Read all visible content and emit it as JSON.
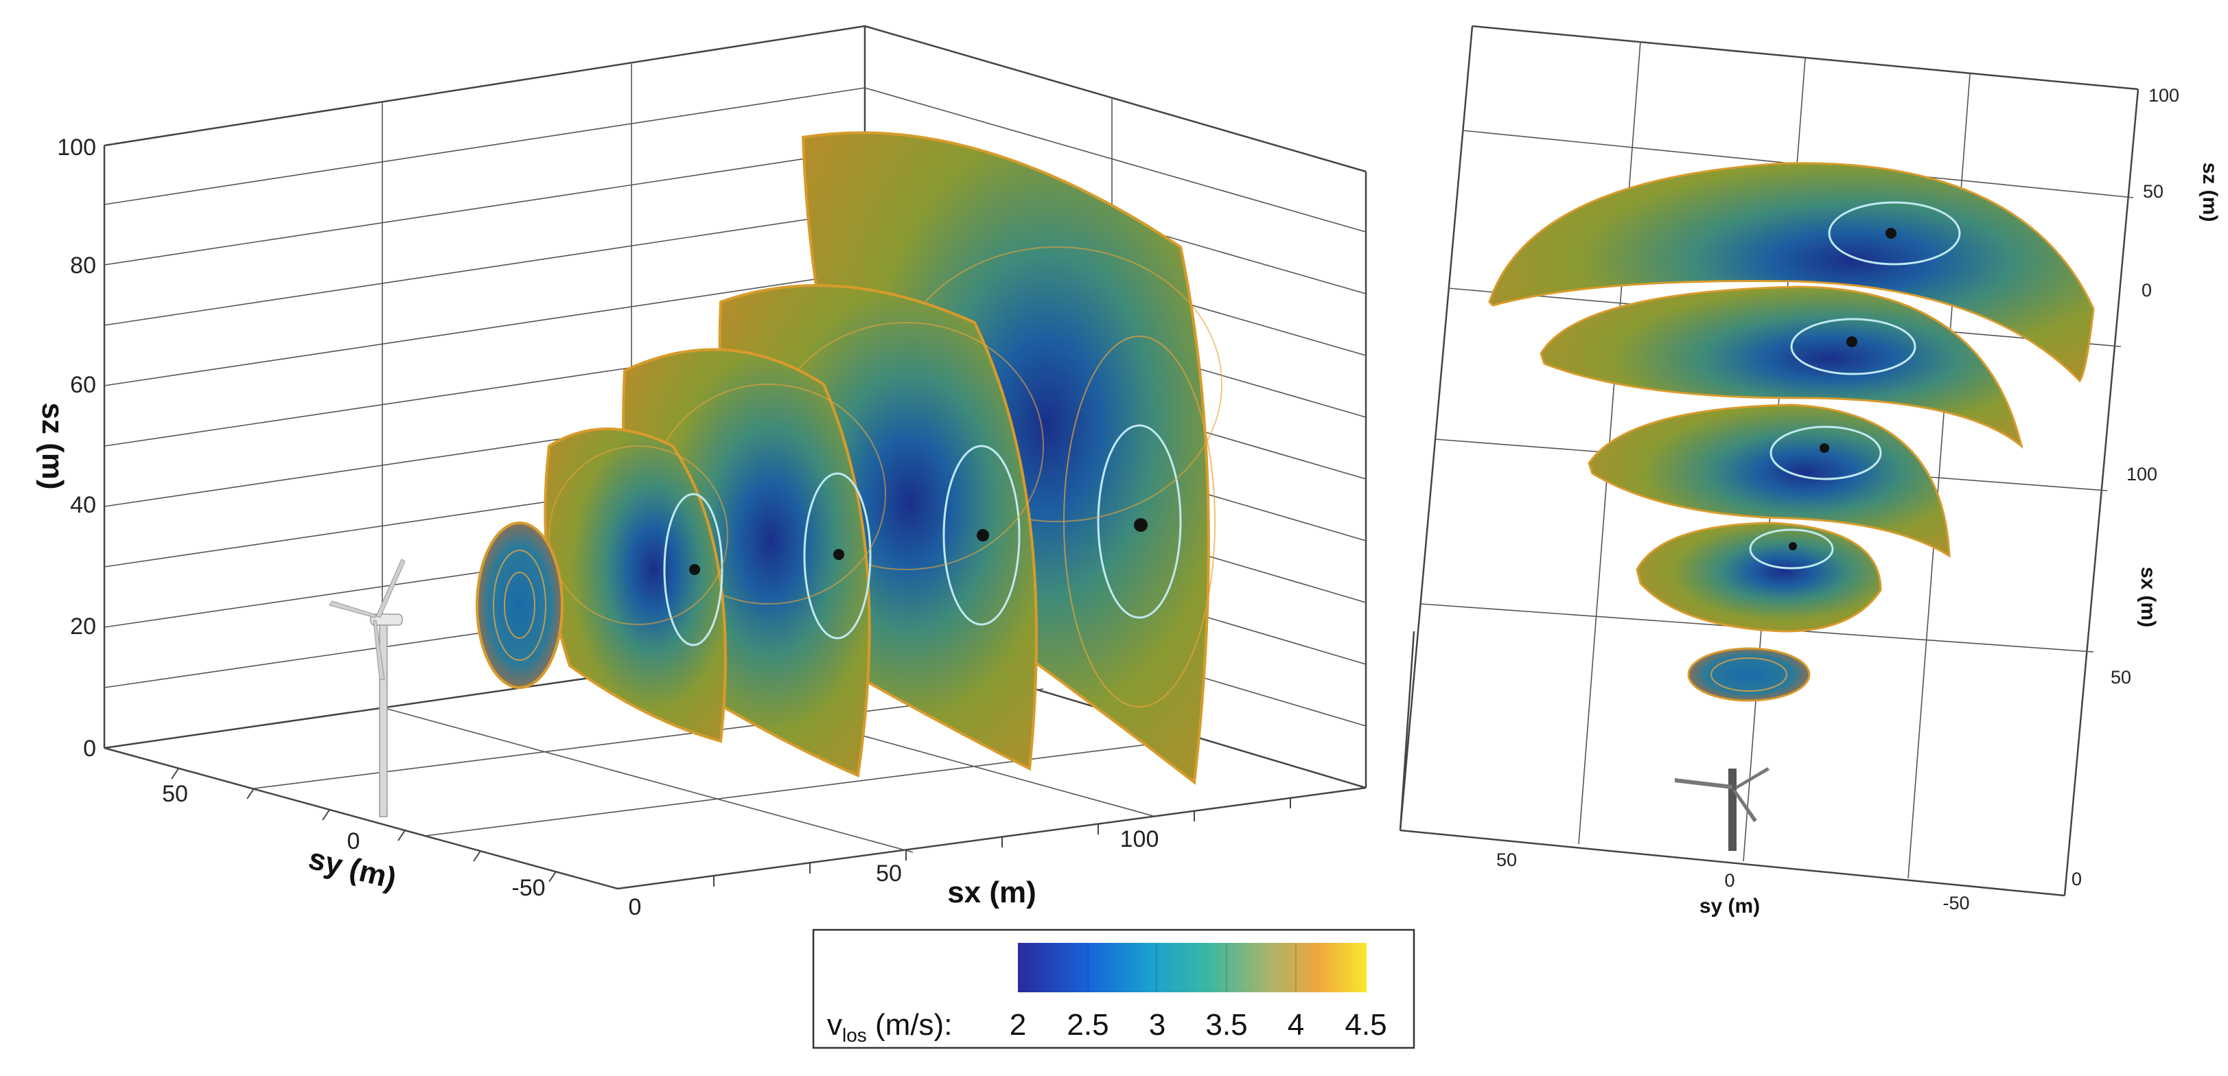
{
  "left_panel": {
    "z_axis": {
      "title": "sz (m)",
      "ticks": [
        "0",
        "20",
        "40",
        "60",
        "80",
        "100"
      ]
    },
    "y_axis": {
      "title": "sy (m)",
      "ticks": [
        "50",
        "0",
        "-50"
      ]
    },
    "x_axis": {
      "title": "sx (m)",
      "ticks": [
        "0",
        "50",
        "100"
      ]
    }
  },
  "right_panel": {
    "z_axis": {
      "title": "sz (m)",
      "ticks": [
        "100",
        "50",
        "0"
      ]
    },
    "x_axis": {
      "title": "sx (m)",
      "ticks": [
        "100",
        "50",
        "0"
      ]
    },
    "y_axis": {
      "title": "sy (m)",
      "ticks": [
        "50",
        "0",
        "-50"
      ]
    }
  },
  "colorbar": {
    "label_main": "v",
    "label_sub": "los",
    "label_unit": " (m/s):",
    "ticks": [
      "2",
      "2.5",
      "3",
      "3.5",
      "4",
      "4.5"
    ],
    "colors": [
      "#2a2a9c",
      "#1663d8",
      "#1aa0d0",
      "#3bb8a0",
      "#a9b46a",
      "#f0a640",
      "#f8e82c"
    ]
  },
  "scan_surfaces": {
    "count": 5,
    "low_speed_color": "#1a2f8a",
    "high_speed_color": "#a6a123",
    "contour_color": "#e8a33c",
    "isoline_color": "#bfe9f0"
  }
}
